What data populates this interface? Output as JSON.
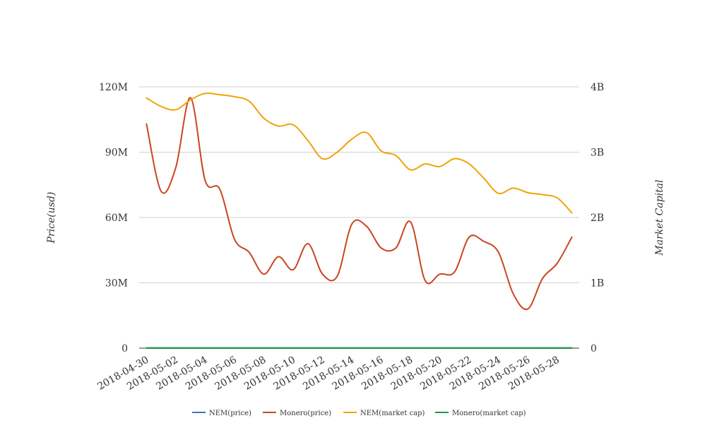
{
  "chart_data": {
    "type": "line",
    "y_left_label": "Price(usd)",
    "y_right_label": "Market Capital",
    "y_left_ticks": [
      "0",
      "30M",
      "60M",
      "90M",
      "120M"
    ],
    "y_right_ticks": [
      "0",
      "1B",
      "2B",
      "3B",
      "4B"
    ],
    "y_left_range": [
      0,
      120000000
    ],
    "y_right_range": [
      0,
      4000000000
    ],
    "x_tick_labels": [
      "2018-04-30",
      "2018-05-02",
      "2018-05-04",
      "2018-05-06",
      "2018-05-08",
      "2018-05-10",
      "2018-05-12",
      "2018-05-14",
      "2018-05-16",
      "2018-05-18",
      "2018-05-20",
      "2018-05-22",
      "2018-05-24",
      "2018-05-26",
      "2018-05-28"
    ],
    "x": [
      "2018-04-30",
      "2018-05-01",
      "2018-05-02",
      "2018-05-03",
      "2018-05-04",
      "2018-05-05",
      "2018-05-06",
      "2018-05-07",
      "2018-05-08",
      "2018-05-09",
      "2018-05-10",
      "2018-05-11",
      "2018-05-12",
      "2018-05-13",
      "2018-05-14",
      "2018-05-15",
      "2018-05-16",
      "2018-05-17",
      "2018-05-18",
      "2018-05-19",
      "2018-05-20",
      "2018-05-21",
      "2018-05-22",
      "2018-05-23",
      "2018-05-24",
      "2018-05-25",
      "2018-05-26",
      "2018-05-27",
      "2018-05-28",
      "2018-05-29"
    ],
    "grid": true,
    "legend_position": "bottom",
    "series": [
      {
        "name": "NEM(price)",
        "axis": "left",
        "color": "#4472c4",
        "values": [
          0.4,
          0.38,
          0.42,
          0.55,
          0.43,
          0.42,
          0.41,
          0.39,
          0.37,
          0.36,
          0.36,
          0.33,
          0.3,
          0.3,
          0.33,
          0.34,
          0.32,
          0.3,
          0.29,
          0.29,
          0.28,
          0.29,
          0.3,
          0.29,
          0.26,
          0.25,
          0.25,
          0.24,
          0.24,
          0.23
        ]
      },
      {
        "name": "Monero(price)",
        "axis": "left",
        "color": "#c9461f",
        "values": [
          103000000,
          72000000,
          83000000,
          115000000,
          77000000,
          73000000,
          50000000,
          44000000,
          34000000,
          42000000,
          36000000,
          48000000,
          34000000,
          33000000,
          57000000,
          56000000,
          46000000,
          46000000,
          58000000,
          31000000,
          34000000,
          35000000,
          51000000,
          49000000,
          44000000,
          25000000,
          18000000,
          32000000,
          39000000,
          51000000
        ]
      },
      {
        "name": "NEM(market cap)",
        "axis": "right",
        "color": "#f0a30a",
        "values": [
          3830000000,
          3700000000,
          3650000000,
          3800000000,
          3900000000,
          3880000000,
          3850000000,
          3780000000,
          3520000000,
          3400000000,
          3420000000,
          3180000000,
          2900000000,
          3000000000,
          3200000000,
          3300000000,
          3020000000,
          2950000000,
          2730000000,
          2820000000,
          2780000000,
          2900000000,
          2820000000,
          2600000000,
          2370000000,
          2450000000,
          2380000000,
          2350000000,
          2300000000,
          2070000000
        ]
      },
      {
        "name": "Monero(market cap)",
        "axis": "right",
        "color": "#1f9a3a",
        "values": [
          4000000,
          4000000,
          4000000,
          4000000,
          4000000,
          4000000,
          4000000,
          4000000,
          4000000,
          4000000,
          4000000,
          4000000,
          4000000,
          4000000,
          4000000,
          4000000,
          4000000,
          4000000,
          4000000,
          4000000,
          4000000,
          4000000,
          4000000,
          4000000,
          4000000,
          4000000,
          4000000,
          4000000,
          4000000,
          4000000
        ]
      }
    ]
  }
}
